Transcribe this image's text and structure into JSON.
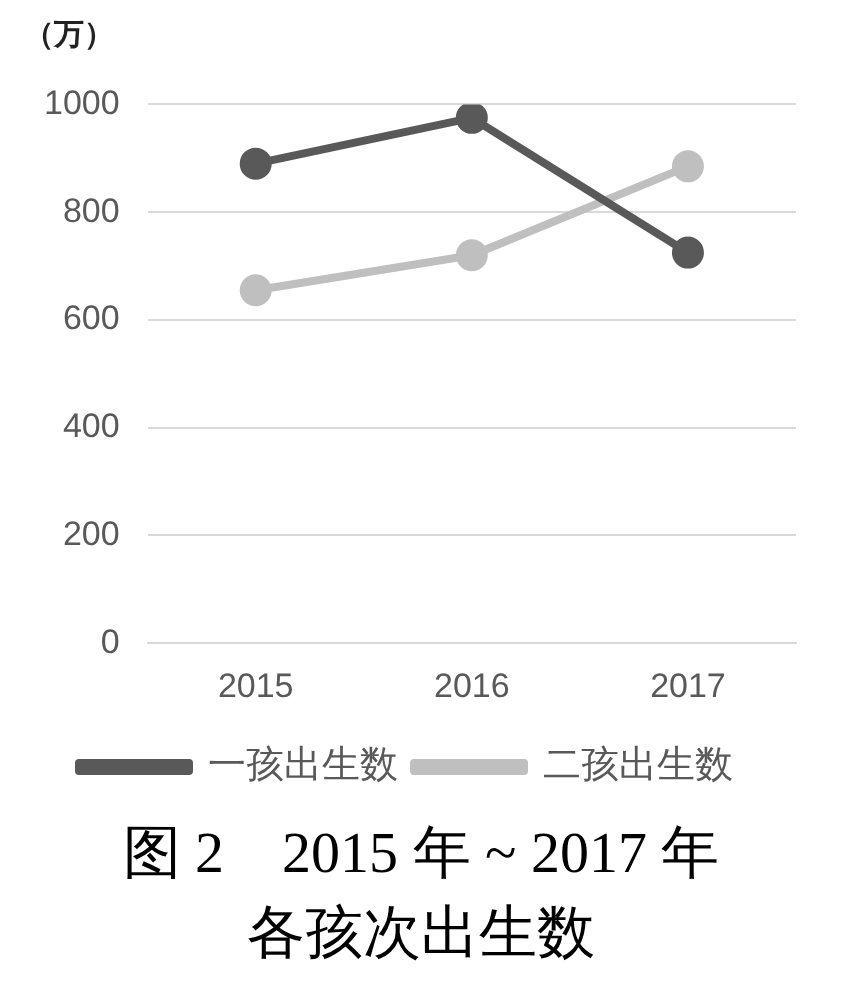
{
  "chart_data": {
    "type": "line",
    "title": "图 2　2015 年 ~ 2017 年各孩次出生数",
    "ylabel": "（万）",
    "categories": [
      "2015",
      "2016",
      "2017"
    ],
    "series": [
      {
        "name": "一孩出生数",
        "color": "#595959",
        "values": [
          890,
          975,
          725
        ]
      },
      {
        "name": "二孩出生数",
        "color": "#bfbfbf",
        "values": [
          655,
          720,
          885
        ]
      }
    ],
    "ylim": [
      0,
      1000
    ],
    "yticks": [
      0,
      200,
      400,
      600,
      800,
      1000
    ],
    "grid": "y",
    "legend": "bottom",
    "marker": "circle",
    "line_style": "solid"
  }
}
